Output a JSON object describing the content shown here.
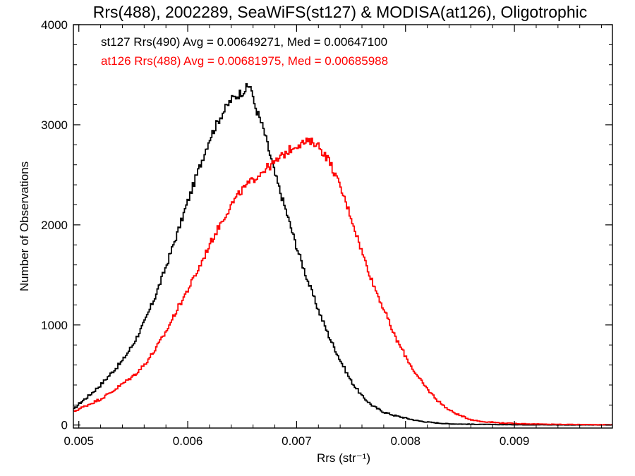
{
  "chart_data": {
    "type": "line",
    "step": true,
    "title": "Rrs(488), 2002289, SeaWiFS(st127) & MODISA(at126), Oligotrophic",
    "xlabel": "Rrs (str⁻¹)",
    "ylabel": "Number of Observations",
    "xlim": [
      0.00495,
      0.0099
    ],
    "ylim": [
      -30,
      4000
    ],
    "x_ticks": [
      {
        "value": 0.005,
        "label": "0.005"
      },
      {
        "value": 0.006,
        "label": "0.006"
      },
      {
        "value": 0.007,
        "label": "0.007"
      },
      {
        "value": 0.008,
        "label": "0.008"
      },
      {
        "value": 0.009,
        "label": "0.009"
      }
    ],
    "y_ticks": [
      {
        "value": 0,
        "label": "0"
      },
      {
        "value": 1000,
        "label": "1000"
      },
      {
        "value": 2000,
        "label": "2000"
      },
      {
        "value": 3000,
        "label": "3000"
      },
      {
        "value": 4000,
        "label": "4000"
      }
    ],
    "grid": false,
    "legend_position": "top-left",
    "series": [
      {
        "name": "st127 Rrs(490) Avg = 0.00649271, Med = 0.00647100",
        "color": "#000000",
        "points": [
          [
            0.00495,
            150
          ],
          [
            0.005,
            210
          ],
          [
            0.0051,
            300
          ],
          [
            0.0052,
            400
          ],
          [
            0.0053,
            520
          ],
          [
            0.0054,
            640
          ],
          [
            0.0055,
            810
          ],
          [
            0.0056,
            1020
          ],
          [
            0.0057,
            1280
          ],
          [
            0.0058,
            1580
          ],
          [
            0.0059,
            1900
          ],
          [
            0.006,
            2230
          ],
          [
            0.0061,
            2550
          ],
          [
            0.0062,
            2860
          ],
          [
            0.0063,
            3080
          ],
          [
            0.0064,
            3250
          ],
          [
            0.0065,
            3330
          ],
          [
            0.00658,
            3400
          ],
          [
            0.0066,
            3250
          ],
          [
            0.0067,
            2940
          ],
          [
            0.0068,
            2510
          ],
          [
            0.0069,
            2150
          ],
          [
            0.007,
            1780
          ],
          [
            0.0071,
            1450
          ],
          [
            0.0072,
            1150
          ],
          [
            0.0073,
            880
          ],
          [
            0.0074,
            650
          ],
          [
            0.0075,
            440
          ],
          [
            0.0076,
            290
          ],
          [
            0.0077,
            190
          ],
          [
            0.0078,
            130
          ],
          [
            0.0079,
            95
          ],
          [
            0.008,
            70
          ],
          [
            0.0081,
            45
          ],
          [
            0.0082,
            30
          ],
          [
            0.0083,
            20
          ],
          [
            0.0084,
            12
          ],
          [
            0.0085,
            10
          ],
          [
            0.0086,
            8
          ],
          [
            0.0088,
            5
          ],
          [
            0.009,
            3
          ],
          [
            0.0093,
            2
          ],
          [
            0.0096,
            1
          ],
          [
            0.0099,
            1
          ]
        ]
      },
      {
        "name": "at126 Rrs(488) Avg = 0.00681975, Med = 0.00685988",
        "color": "#ff0000",
        "points": [
          [
            0.00495,
            130
          ],
          [
            0.005,
            160
          ],
          [
            0.0051,
            210
          ],
          [
            0.0052,
            260
          ],
          [
            0.0053,
            330
          ],
          [
            0.0054,
            410
          ],
          [
            0.0055,
            490
          ],
          [
            0.0056,
            600
          ],
          [
            0.0057,
            750
          ],
          [
            0.0058,
            930
          ],
          [
            0.0059,
            1150
          ],
          [
            0.006,
            1350
          ],
          [
            0.0061,
            1560
          ],
          [
            0.0062,
            1800
          ],
          [
            0.0063,
            2010
          ],
          [
            0.0064,
            2200
          ],
          [
            0.0065,
            2350
          ],
          [
            0.0066,
            2450
          ],
          [
            0.0067,
            2550
          ],
          [
            0.0068,
            2620
          ],
          [
            0.0069,
            2720
          ],
          [
            0.007,
            2800
          ],
          [
            0.0071,
            2830
          ],
          [
            0.00718,
            2820
          ],
          [
            0.0073,
            2640
          ],
          [
            0.0074,
            2380
          ],
          [
            0.0075,
            2080
          ],
          [
            0.0076,
            1730
          ],
          [
            0.0077,
            1420
          ],
          [
            0.0078,
            1160
          ],
          [
            0.0079,
            890
          ],
          [
            0.008,
            690
          ],
          [
            0.0081,
            500
          ],
          [
            0.0082,
            360
          ],
          [
            0.0083,
            240
          ],
          [
            0.0084,
            150
          ],
          [
            0.0085,
            95
          ],
          [
            0.0086,
            55
          ],
          [
            0.0087,
            35
          ],
          [
            0.0088,
            28
          ],
          [
            0.0089,
            20
          ],
          [
            0.009,
            16
          ],
          [
            0.0091,
            12
          ],
          [
            0.0093,
            8
          ],
          [
            0.0095,
            6
          ],
          [
            0.0097,
            4
          ],
          [
            0.0099,
            3
          ]
        ]
      }
    ]
  }
}
